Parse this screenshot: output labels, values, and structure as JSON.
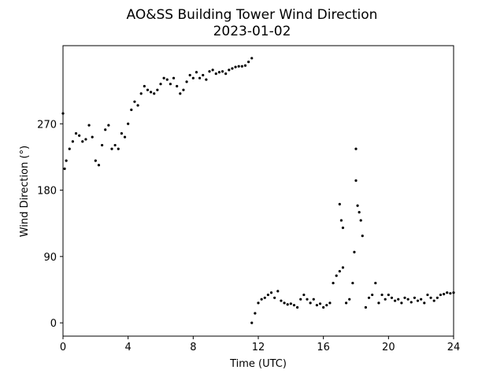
{
  "chart_data": {
    "type": "scatter",
    "title": "AO&SS Building Tower Wind Direction",
    "subtitle": "2023-01-02",
    "x_label": "Time (UTC)",
    "y_label": "Wind Direction (°)",
    "xlim": [
      0,
      24
    ],
    "xticks": [
      0,
      4,
      8,
      12,
      16,
      20,
      24
    ],
    "ylim": [
      -18,
      376
    ],
    "yticks": [
      0,
      90,
      180,
      270
    ],
    "color": "#000000",
    "x": [
      0,
      0.1,
      0.2,
      0.4,
      0.6,
      0.8,
      1.0,
      1.2,
      1.4,
      1.6,
      1.8,
      2.0,
      2.2,
      2.4,
      2.6,
      2.8,
      3.0,
      3.2,
      3.4,
      3.6,
      3.8,
      4.0,
      4.2,
      4.4,
      4.6,
      4.8,
      5.0,
      5.2,
      5.4,
      5.6,
      5.8,
      6.0,
      6.2,
      6.4,
      6.6,
      6.8,
      7.0,
      7.2,
      7.4,
      7.6,
      7.8,
      8.0,
      8.2,
      8.4,
      8.6,
      8.8,
      9.0,
      9.2,
      9.4,
      9.6,
      9.8,
      10.0,
      10.2,
      10.4,
      10.6,
      10.8,
      11.0,
      11.2,
      11.4,
      11.6,
      11.6,
      11.8,
      12.0,
      12.2,
      12.4,
      12.6,
      12.8,
      13.0,
      13.2,
      13.4,
      13.6,
      13.8,
      14.0,
      14.2,
      14.4,
      14.6,
      14.8,
      15.0,
      15.2,
      15.4,
      15.6,
      15.8,
      16.0,
      16.2,
      16.4,
      16.6,
      16.8,
      17.0,
      17.0,
      17.1,
      17.2,
      17.2,
      17.4,
      17.6,
      17.8,
      17.9,
      18.0,
      18.0,
      18.1,
      18.2,
      18.3,
      18.4,
      18.6,
      18.8,
      19.0,
      19.2,
      19.4,
      19.6,
      19.8,
      20.0,
      20.2,
      20.4,
      20.6,
      20.8,
      21.0,
      21.2,
      21.4,
      21.6,
      21.8,
      22.0,
      22.2,
      22.4,
      22.6,
      22.8,
      23.0,
      23.2,
      23.4,
      23.6,
      23.8,
      24.0
    ],
    "values": [
      284,
      209,
      220,
      236,
      246,
      257,
      254,
      246,
      249,
      268,
      252,
      220,
      214,
      241,
      262,
      268,
      236,
      241,
      236,
      257,
      252,
      270,
      289,
      300,
      295,
      311,
      321,
      316,
      313,
      311,
      316,
      324,
      332,
      330,
      324,
      332,
      321,
      311,
      316,
      327,
      336,
      332,
      340,
      332,
      336,
      330,
      341,
      343,
      338,
      340,
      341,
      338,
      343,
      345,
      347,
      348,
      348,
      349,
      354,
      359,
      0,
      13,
      27,
      32,
      34,
      38,
      41,
      34,
      43,
      30,
      27,
      25,
      26,
      24,
      21,
      32,
      38,
      32,
      27,
      32,
      24,
      26,
      21,
      24,
      27,
      54,
      64,
      70,
      161,
      139,
      129,
      75,
      27,
      32,
      54,
      96,
      236,
      193,
      159,
      150,
      139,
      118,
      21,
      34,
      38,
      54,
      27,
      38,
      32,
      38,
      34,
      30,
      32,
      27,
      34,
      32,
      28,
      34,
      30,
      32,
      27,
      38,
      34,
      30,
      34,
      38,
      39,
      41,
      40,
      41
    ]
  }
}
